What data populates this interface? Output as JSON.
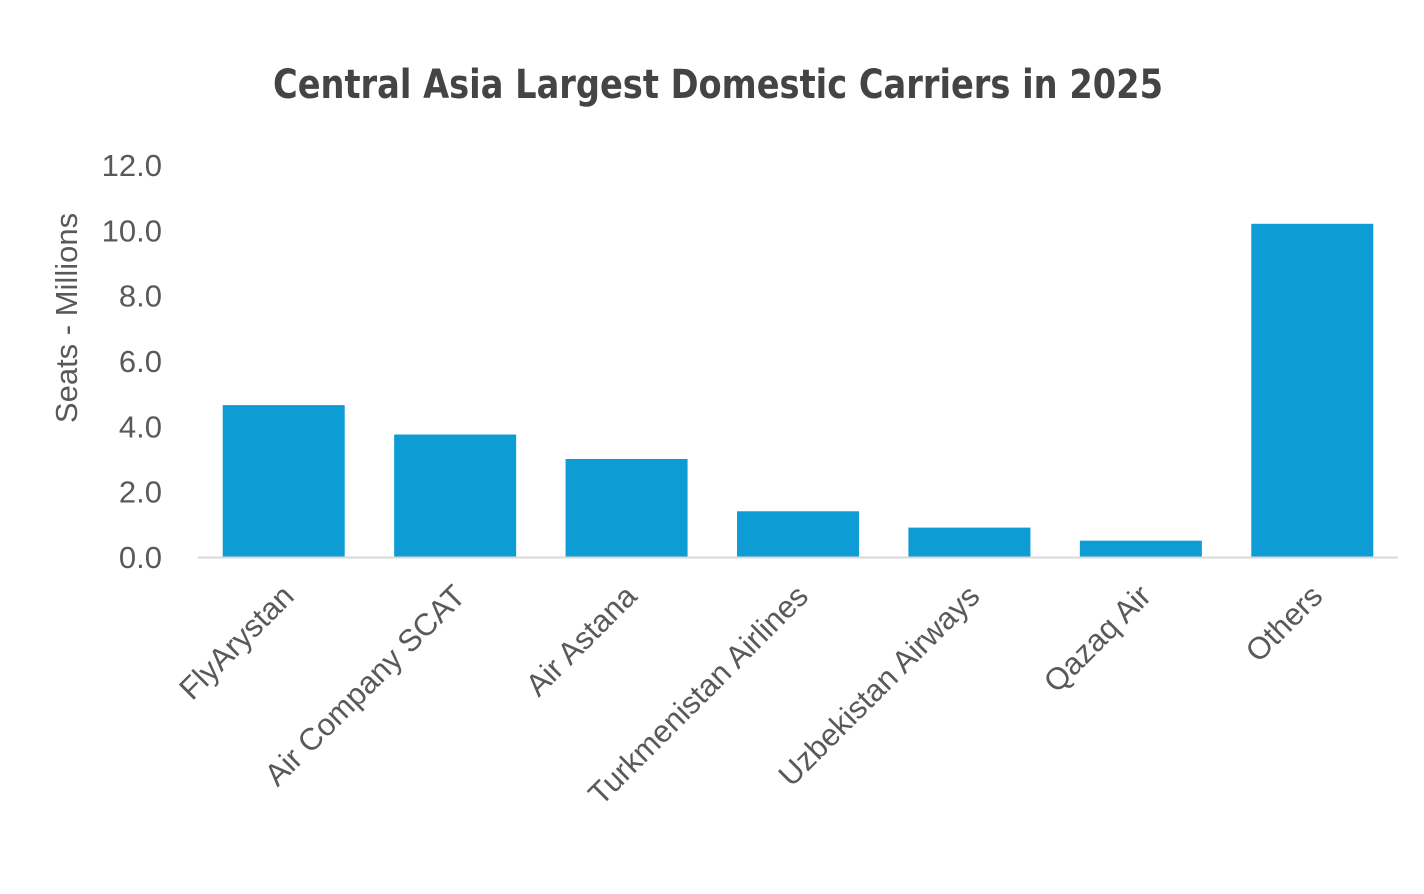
{
  "chart_data": {
    "type": "bar",
    "title": "Central Asia Largest Domestic Carriers in 2025",
    "xlabel": "",
    "ylabel": "Seats - Millions",
    "ylim": [
      0,
      12
    ],
    "yticks": [
      "0.0",
      "2.0",
      "4.0",
      "6.0",
      "8.0",
      "10.0",
      "12.0"
    ],
    "grid": false,
    "categories": [
      "FlyArystan",
      "Air Company SCAT",
      "Air Astana",
      "Turkmenistan Airlines",
      "Uzbekistan Airways",
      "Qazaq Air",
      "Others"
    ],
    "values": [
      4.65,
      3.75,
      3.0,
      1.4,
      0.9,
      0.5,
      10.2
    ],
    "bar_color": "#0e9cd5",
    "axis_color": "#d9d9d9"
  }
}
